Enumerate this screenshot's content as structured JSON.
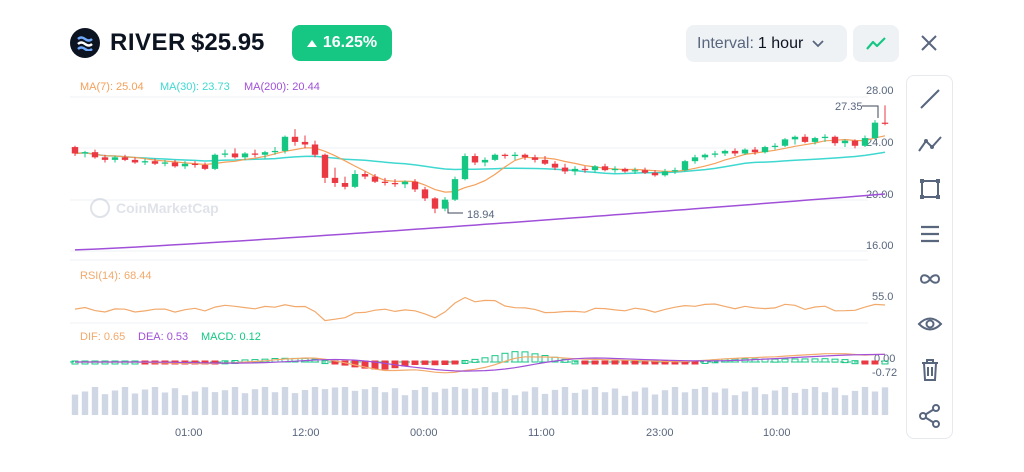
{
  "header": {
    "token_name": "RIVER",
    "price": "$25.95",
    "change": "16.25%",
    "interval_label": "Interval:",
    "interval_value": "1 hour"
  },
  "watermark": "CoinMarketCap",
  "colors": {
    "up": "#16c784",
    "down": "#ea3943",
    "ma7": "#f5a05a",
    "ma30": "#3fd8d0",
    "ma200": "#a050d8",
    "rsi": "#f2a96b",
    "dif": "#f2a96b",
    "dea": "#a050d8",
    "volume": "#cfd6e4"
  },
  "legends": {
    "ma7": "MA(7): 25.04",
    "ma30": "MA(30): 23.73",
    "ma200": "MA(200): 20.44",
    "rsi": "RSI(14): 68.44",
    "dif": "DIF: 0.65",
    "dea": "DEA: 0.53",
    "macd": "MACD: 0.12"
  },
  "toolbar": {
    "tools": [
      "line-tool-icon",
      "polyline-tool-icon",
      "rectangle-tool-icon",
      "horizontal-lines-icon",
      "infinity-icon",
      "eye-icon",
      "trash-icon",
      "share-icon"
    ]
  },
  "chart_data": {
    "type": "candlestick",
    "price_axis": {
      "ticks": [
        "28.00",
        "24.00",
        "20.00",
        "16.00"
      ],
      "range": [
        16,
        28
      ]
    },
    "x_ticks": [
      "01:00",
      "12:00",
      "00:00",
      "11:00",
      "23:00",
      "10:00"
    ],
    "annotations": {
      "high": "27.35",
      "low": "18.94"
    },
    "rsi_axis": {
      "tick": "55.0"
    },
    "macd_axis": {
      "ticks": [
        "0.00",
        "-0.72"
      ]
    },
    "candles": [
      [
        24.1,
        24.2,
        23.4,
        23.6
      ],
      [
        23.6,
        23.8,
        23.3,
        23.7
      ],
      [
        23.7,
        23.9,
        23.2,
        23.3
      ],
      [
        23.3,
        23.5,
        22.9,
        23.1
      ],
      [
        23.1,
        23.4,
        22.9,
        23.3
      ],
      [
        23.3,
        23.5,
        23.0,
        23.1
      ],
      [
        23.1,
        23.3,
        22.8,
        22.9
      ],
      [
        22.9,
        23.2,
        22.7,
        23.0
      ],
      [
        23.0,
        23.2,
        22.7,
        22.8
      ],
      [
        22.8,
        23.1,
        22.6,
        22.9
      ],
      [
        22.9,
        23.1,
        22.5,
        22.6
      ],
      [
        22.6,
        23.0,
        22.4,
        22.8
      ],
      [
        22.8,
        23.0,
        22.5,
        22.7
      ],
      [
        22.7,
        22.9,
        22.3,
        22.4
      ],
      [
        22.4,
        23.6,
        22.3,
        23.5
      ],
      [
        23.5,
        23.9,
        23.3,
        23.6
      ],
      [
        23.6,
        24.0,
        23.2,
        23.3
      ],
      [
        23.3,
        23.7,
        23.1,
        23.6
      ],
      [
        23.6,
        23.9,
        23.3,
        23.5
      ],
      [
        23.5,
        23.8,
        23.2,
        23.7
      ],
      [
        23.7,
        24.1,
        23.5,
        23.8
      ],
      [
        23.8,
        25.0,
        23.6,
        24.9
      ],
      [
        24.9,
        25.5,
        24.2,
        24.5
      ],
      [
        24.5,
        25.0,
        24.0,
        24.3
      ],
      [
        24.3,
        24.6,
        23.3,
        23.5
      ],
      [
        23.5,
        23.6,
        21.3,
        21.7
      ],
      [
        21.7,
        22.5,
        21.0,
        21.3
      ],
      [
        21.3,
        21.8,
        20.8,
        21.0
      ],
      [
        21.0,
        22.3,
        20.9,
        22.0
      ],
      [
        22.0,
        22.2,
        21.6,
        21.8
      ],
      [
        21.8,
        22.0,
        21.3,
        21.4
      ],
      [
        21.4,
        21.7,
        21.1,
        21.3
      ],
      [
        21.3,
        21.6,
        21.0,
        21.2
      ],
      [
        21.2,
        21.5,
        20.9,
        21.4
      ],
      [
        21.4,
        21.6,
        20.6,
        20.8
      ],
      [
        20.8,
        21.0,
        19.9,
        20.1
      ],
      [
        20.1,
        20.2,
        18.94,
        19.3
      ],
      [
        19.3,
        20.2,
        19.1,
        20.0
      ],
      [
        20.0,
        21.8,
        19.9,
        21.6
      ],
      [
        21.6,
        23.6,
        21.5,
        23.4
      ],
      [
        23.4,
        23.6,
        22.7,
        22.9
      ],
      [
        22.9,
        23.3,
        22.6,
        23.1
      ],
      [
        23.1,
        23.6,
        23.0,
        23.5
      ],
      [
        23.5,
        23.6,
        23.2,
        23.4
      ],
      [
        23.4,
        23.7,
        23.1,
        23.5
      ],
      [
        23.5,
        23.6,
        23.1,
        23.3
      ],
      [
        23.3,
        23.5,
        22.9,
        23.1
      ],
      [
        23.1,
        23.4,
        22.7,
        22.8
      ],
      [
        22.8,
        23.0,
        22.3,
        22.5
      ],
      [
        22.5,
        22.8,
        22.0,
        22.2
      ],
      [
        22.2,
        22.6,
        21.9,
        22.4
      ],
      [
        22.4,
        22.6,
        22.1,
        22.3
      ],
      [
        22.3,
        22.7,
        22.1,
        22.6
      ],
      [
        22.6,
        22.8,
        22.2,
        22.3
      ],
      [
        22.3,
        22.6,
        22.1,
        22.4
      ],
      [
        22.4,
        22.5,
        22.1,
        22.2
      ],
      [
        22.2,
        22.5,
        22.0,
        22.3
      ],
      [
        22.3,
        22.5,
        22.0,
        22.1
      ],
      [
        22.1,
        22.3,
        21.8,
        21.9
      ],
      [
        21.9,
        22.4,
        21.8,
        22.2
      ],
      [
        22.2,
        22.5,
        22.0,
        22.3
      ],
      [
        22.3,
        23.1,
        22.2,
        23.0
      ],
      [
        23.0,
        23.5,
        22.8,
        23.3
      ],
      [
        23.3,
        23.6,
        23.1,
        23.5
      ],
      [
        23.5,
        23.8,
        23.3,
        23.6
      ],
      [
        23.6,
        23.9,
        23.4,
        23.8
      ],
      [
        23.8,
        24.0,
        23.4,
        23.6
      ],
      [
        23.6,
        24.0,
        23.5,
        23.9
      ],
      [
        23.9,
        24.1,
        23.5,
        23.7
      ],
      [
        23.7,
        24.2,
        23.6,
        24.1
      ],
      [
        24.1,
        24.4,
        23.9,
        24.2
      ],
      [
        24.2,
        24.8,
        24.1,
        24.7
      ],
      [
        24.7,
        25.0,
        24.3,
        24.9
      ],
      [
        24.9,
        25.1,
        24.4,
        24.5
      ],
      [
        24.5,
        24.9,
        24.3,
        24.8
      ],
      [
        24.8,
        25.1,
        24.5,
        24.9
      ],
      [
        24.9,
        25.0,
        24.2,
        24.4
      ],
      [
        24.4,
        24.7,
        24.1,
        24.6
      ],
      [
        24.6,
        24.7,
        24.0,
        24.2
      ],
      [
        24.2,
        25.0,
        24.1,
        24.8
      ],
      [
        24.8,
        26.2,
        24.7,
        26.0
      ],
      [
        26.0,
        27.35,
        25.8,
        25.95
      ]
    ]
  }
}
